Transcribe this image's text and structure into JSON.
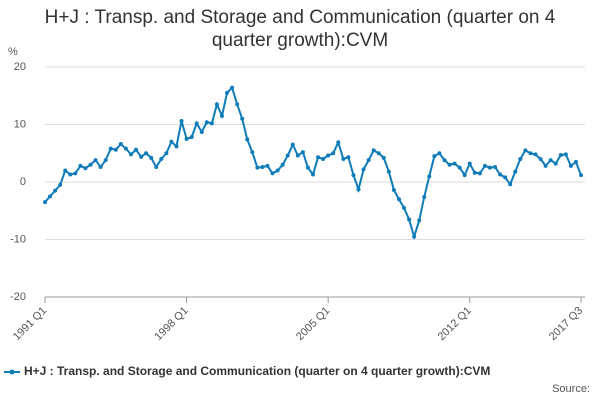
{
  "chart_data": {
    "type": "line",
    "title": "H+J : Transp. and Storage and Communication (quarter on 4 quarter growth):CVM",
    "y_label": "%",
    "source": "Source:",
    "categories": [
      "1991 Q1",
      null,
      null,
      null,
      null,
      null,
      null,
      null,
      null,
      null,
      null,
      null,
      null,
      null,
      null,
      null,
      null,
      null,
      null,
      null,
      null,
      null,
      null,
      null,
      null,
      null,
      null,
      null,
      "1998 Q1",
      null,
      null,
      null,
      null,
      null,
      null,
      null,
      null,
      null,
      null,
      null,
      null,
      null,
      null,
      null,
      null,
      null,
      null,
      null,
      null,
      null,
      null,
      null,
      null,
      null,
      null,
      null,
      "2005 Q1",
      null,
      null,
      null,
      null,
      null,
      null,
      null,
      null,
      null,
      null,
      null,
      null,
      null,
      null,
      null,
      null,
      null,
      null,
      null,
      null,
      null,
      null,
      null,
      null,
      null,
      null,
      null,
      "2012 Q1",
      null,
      null,
      null,
      null,
      null,
      null,
      null,
      null,
      null,
      null,
      null,
      null,
      null,
      null,
      null,
      null,
      null,
      null,
      null,
      null,
      null,
      "2017 Q3"
    ],
    "series": [
      {
        "name": "H+J : Transp. and Storage and Communication (quarter on 4 quarter growth):CVM",
        "color": "#0e7cb8",
        "values": [
          -3.5,
          -2.5,
          -1.5,
          -0.5,
          2,
          1.3,
          1.5,
          2.8,
          2.4,
          3,
          3.8,
          2.6,
          3.8,
          5.8,
          5.6,
          6.6,
          5.8,
          4.8,
          5.6,
          4.4,
          5,
          4.2,
          2.6,
          4,
          5,
          7,
          6.2,
          10.6,
          7.5,
          7.8,
          10.2,
          8.7,
          10.4,
          10.2,
          13.5,
          11.5,
          15.5,
          16.4,
          13.5,
          11,
          7.4,
          5.2,
          2.5,
          2.6,
          2.8,
          1.5,
          2,
          3,
          4.6,
          6.5,
          4.6,
          5.2,
          2.5,
          1.3,
          4.3,
          4,
          4.6,
          5,
          6.9,
          4,
          4.3,
          1.2,
          -1.3,
          2.2,
          3.8,
          5.5,
          5,
          4.2,
          1.8,
          -1.4,
          -3,
          -4.5,
          -6.5,
          -9.5,
          -6.7,
          -2.6,
          1,
          4.5,
          5,
          3.8,
          3,
          3.2,
          2.5,
          1.2,
          3.2,
          1.6,
          1.5,
          2.8,
          2.5,
          2.6,
          1.3,
          0.8,
          -0.4,
          1.8,
          4,
          5.5,
          5,
          4.8,
          4,
          2.8,
          3.8,
          3.2,
          4.7,
          4.8,
          2.8,
          3.5,
          1.2
        ]
      }
    ],
    "ylim": [
      -20,
      20
    ],
    "yticks": [
      -20,
      -10,
      0,
      10,
      20
    ],
    "grid": true
  }
}
